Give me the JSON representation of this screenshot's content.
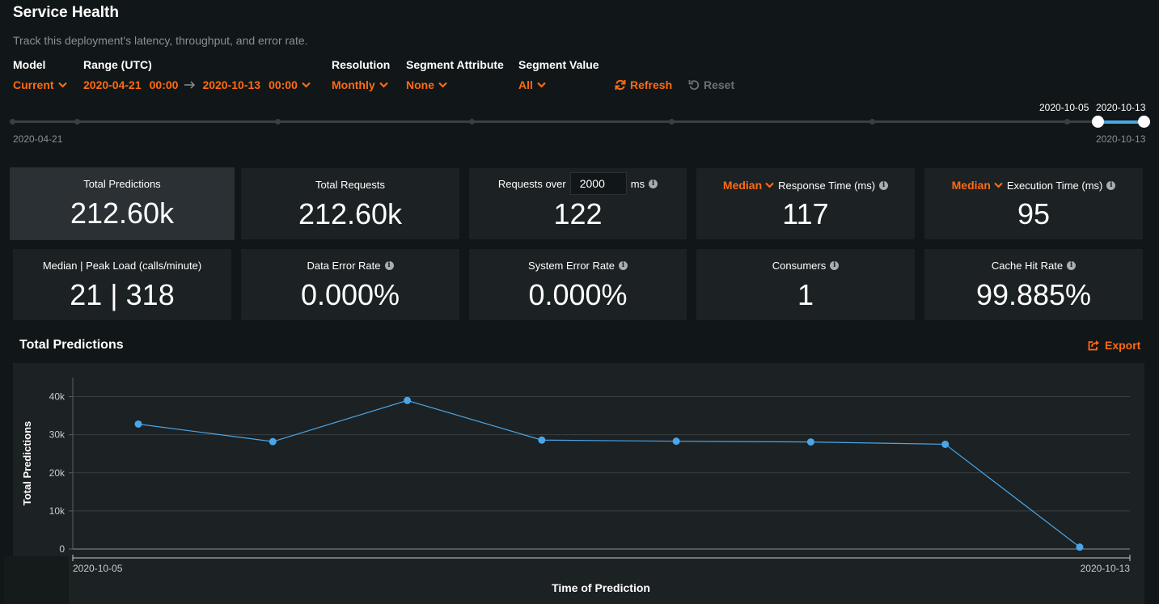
{
  "header": {
    "title": "Service Health",
    "subtitle": "Track this deployment's latency, throughput, and error rate."
  },
  "filters": {
    "model": {
      "label": "Model",
      "value": "Current"
    },
    "range": {
      "label": "Range (UTC)",
      "start_date": "2020-04-21",
      "start_time": "00:00",
      "end_date": "2020-10-13",
      "end_time": "00:00"
    },
    "resolution": {
      "label": "Resolution",
      "value": "Monthly"
    },
    "segment_attribute": {
      "label": "Segment Attribute",
      "value": "None"
    },
    "segment_value": {
      "label": "Segment Value",
      "value": "All"
    },
    "refresh_label": "Refresh",
    "reset_label": "Reset"
  },
  "timeline": {
    "start_label": "2020-04-21",
    "end_label": "2020-10-13",
    "handle_left_label": "2020-10-05",
    "handle_right_label": "2020-10-13"
  },
  "metrics": {
    "total_predictions": {
      "label": "Total Predictions",
      "value": "212.60k"
    },
    "total_requests": {
      "label": "Total Requests",
      "value": "212.60k"
    },
    "requests_over": {
      "label_prefix": "Requests over",
      "threshold": "2000",
      "unit": "ms",
      "value": "122"
    },
    "response_time": {
      "aggregation": "Median",
      "label": "Response Time (ms)",
      "value": "117"
    },
    "execution_time": {
      "aggregation": "Median",
      "label": "Execution Time (ms)",
      "value": "95"
    },
    "load": {
      "label": "Median | Peak Load (calls/minute)",
      "value": "21 | 318"
    },
    "data_error_rate": {
      "label": "Data Error Rate",
      "value": "0.000%"
    },
    "system_error_rate": {
      "label": "System Error Rate",
      "value": "0.000%"
    },
    "consumers": {
      "label": "Consumers",
      "value": "1"
    },
    "cache_hit_rate": {
      "label": "Cache Hit Rate",
      "value": "99.885%"
    }
  },
  "chart_section": {
    "title": "Total Predictions",
    "export_label": "Export"
  },
  "colors": {
    "accent": "#ff6a13",
    "series": "#4aa6e8",
    "background": "#111718",
    "card": "#1c2123"
  },
  "chart_data": {
    "type": "line",
    "title": "",
    "xlabel": "Time of Prediction",
    "ylabel": "Total Predictions",
    "x_tick_labels": [
      "2020-10-05",
      "2020-10-13"
    ],
    "y_ticks": [
      0,
      10000,
      20000,
      30000,
      40000
    ],
    "y_tick_labels": [
      "0",
      "10k",
      "20k",
      "30k",
      "40k"
    ],
    "ylim": [
      0,
      45000
    ],
    "grid": true,
    "x": [
      "2020-10-05",
      "2020-10-06",
      "2020-10-07",
      "2020-10-08",
      "2020-10-09",
      "2020-10-10",
      "2020-10-11",
      "2020-10-12"
    ],
    "series": [
      {
        "values": [
          32800,
          28200,
          39000,
          28600,
          28300,
          28100,
          27500,
          500
        ]
      }
    ]
  }
}
